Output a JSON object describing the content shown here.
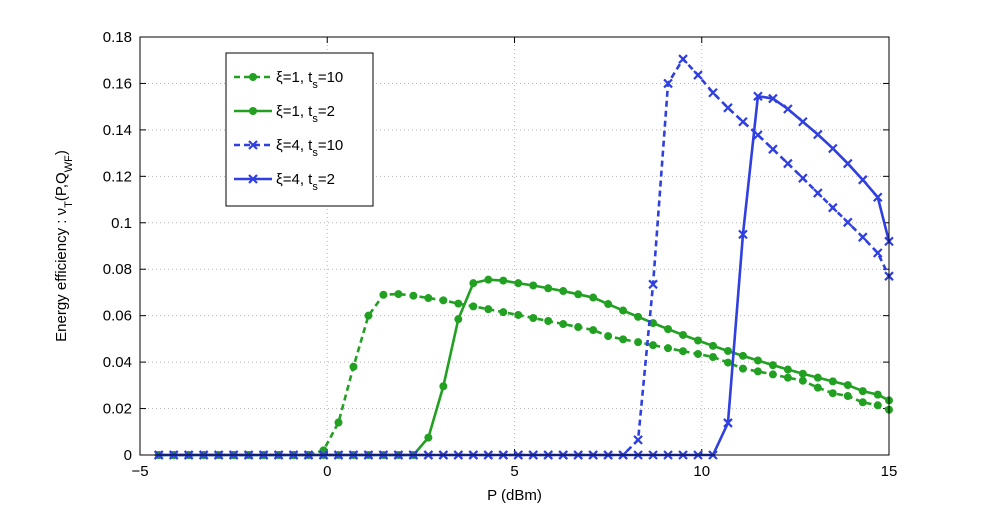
{
  "chart_data": {
    "type": "line",
    "xlabel": "P (dBm)",
    "ylabel": "Energy efficiency : ν_T(P,Q_WF)",
    "ylabel_parts": {
      "pre": "Energy efficiency : ν",
      "sub1": "T",
      "mid": "(P,Q",
      "sub2": "WF",
      "post": ")"
    },
    "xlim": [
      -5,
      15
    ],
    "ylim": [
      0,
      0.18
    ],
    "xticks": [
      -5,
      0,
      5,
      10,
      15
    ],
    "xtick_labels": [
      "−5",
      "0",
      "5",
      "10",
      "15"
    ],
    "yticks": [
      0,
      0.02,
      0.04,
      0.06,
      0.08,
      0.1,
      0.12,
      0.14,
      0.16,
      0.18
    ],
    "ytick_labels": [
      "0",
      "0.02",
      "0.04",
      "0.06",
      "0.08",
      "0.1",
      "0.12",
      "0.14",
      "0.16",
      "0.18"
    ],
    "grid": true,
    "legend_position": "top-left",
    "series": [
      {
        "name": "ξ=1, t_s=10",
        "label_parts": {
          "main": "ξ=1, t",
          "sub": "s",
          "tail": "=10"
        },
        "color": "#22a022",
        "linestyle": "dashed",
        "marker": "dot",
        "x": [
          -4.5,
          -4.1,
          -3.7,
          -3.3,
          -2.9,
          -2.5,
          -2.1,
          -1.7,
          -1.3,
          -0.9,
          -0.5,
          -0.1,
          0.3,
          0.7,
          1.1,
          1.5,
          1.9,
          2.3,
          2.7,
          3.1,
          3.5,
          3.9,
          4.3,
          4.7,
          5.1,
          5.5,
          5.9,
          6.3,
          6.7,
          7.1,
          7.5,
          7.9,
          8.3,
          8.7,
          9.1,
          9.5,
          9.9,
          10.3,
          10.7,
          11.1,
          11.5,
          11.9,
          12.3,
          12.7,
          13.1,
          13.5,
          13.9,
          14.3,
          14.7,
          15.0
        ],
        "y": [
          0,
          0,
          0,
          0,
          0,
          0,
          0,
          0,
          0,
          0,
          0,
          0.002,
          0.014,
          0.038,
          0.06,
          0.069,
          0.0693,
          0.0686,
          0.0676,
          0.0666,
          0.0652,
          0.064,
          0.0628,
          0.0615,
          0.0603,
          0.059,
          0.0577,
          0.0564,
          0.0551,
          0.0538,
          0.0512,
          0.0498,
          0.0486,
          0.0473,
          0.046,
          0.0447,
          0.0435,
          0.0422,
          0.0398,
          0.0372,
          0.036,
          0.0347,
          0.0333,
          0.032,
          0.029,
          0.0266,
          0.0254,
          0.0227,
          0.0214,
          0.0195
        ]
      },
      {
        "name": "ξ=1, t_s=2",
        "label_parts": {
          "main": "ξ=1, t",
          "sub": "s",
          "tail": "=2"
        },
        "color": "#22a022",
        "linestyle": "solid",
        "marker": "dot",
        "x": [
          -4.5,
          -4.1,
          -3.7,
          -3.3,
          -2.9,
          -2.5,
          -2.1,
          -1.7,
          -1.3,
          -0.9,
          -0.5,
          -0.1,
          0.3,
          0.7,
          1.1,
          1.5,
          1.9,
          2.3,
          2.7,
          3.1,
          3.5,
          3.9,
          4.3,
          4.7,
          5.1,
          5.5,
          5.9,
          6.3,
          6.7,
          7.1,
          7.5,
          7.9,
          8.3,
          8.7,
          9.1,
          9.5,
          9.9,
          10.3,
          10.7,
          11.1,
          11.5,
          11.9,
          12.3,
          12.7,
          13.1,
          13.5,
          13.9,
          14.3,
          14.7,
          15.0
        ],
        "y": [
          0,
          0,
          0,
          0,
          0,
          0,
          0,
          0,
          0,
          0,
          0,
          0,
          0,
          0,
          0,
          0,
          0,
          0,
          0.0075,
          0.0296,
          0.0585,
          0.074,
          0.0755,
          0.0751,
          0.074,
          0.073,
          0.0718,
          0.0706,
          0.0692,
          0.0678,
          0.065,
          0.0622,
          0.0595,
          0.0568,
          0.0542,
          0.0517,
          0.0493,
          0.047,
          0.0448,
          0.0427,
          0.0407,
          0.0387,
          0.0368,
          0.035,
          0.0333,
          0.0317,
          0.0301,
          0.0275,
          0.026,
          0.0235
        ]
      },
      {
        "name": "ξ=4, t_s=10",
        "label_parts": {
          "main": "ξ=4, t",
          "sub": "s",
          "tail": "=10"
        },
        "color": "#2f3fe0",
        "linestyle": "dashed",
        "marker": "x",
        "x": [
          -4.5,
          -4.1,
          -3.7,
          -3.3,
          -2.9,
          -2.5,
          -2.1,
          -1.7,
          -1.3,
          -0.9,
          -0.5,
          -0.1,
          0.3,
          0.7,
          1.1,
          1.5,
          1.9,
          2.3,
          2.7,
          3.1,
          3.5,
          3.9,
          4.3,
          4.7,
          5.1,
          5.5,
          5.9,
          6.3,
          6.7,
          7.1,
          7.5,
          7.9,
          8.3,
          8.7,
          9.1,
          9.5,
          9.9,
          10.3,
          10.7,
          11.1,
          11.5,
          11.9,
          12.3,
          12.7,
          13.1,
          13.5,
          13.9,
          14.3,
          14.7,
          15.0
        ],
        "y": [
          0,
          0,
          0,
          0,
          0,
          0,
          0,
          0,
          0,
          0,
          0,
          0,
          0,
          0,
          0,
          0,
          0,
          0,
          0,
          0,
          0,
          0,
          0,
          0,
          0,
          0,
          0,
          0,
          0,
          0,
          0,
          0,
          0.0065,
          0.0735,
          0.16,
          0.1705,
          0.1636,
          0.156,
          0.1495,
          0.1435,
          0.1378,
          0.1317,
          0.1255,
          0.1192,
          0.1128,
          0.1065,
          0.1002,
          0.0938,
          0.087,
          0.077
        ]
      },
      {
        "name": "ξ=4, t_s=2",
        "label_parts": {
          "main": "ξ=4, t",
          "sub": "s",
          "tail": "=2"
        },
        "color": "#2f3fe0",
        "linestyle": "solid",
        "marker": "x",
        "x": [
          -4.5,
          -4.1,
          -3.7,
          -3.3,
          -2.9,
          -2.5,
          -2.1,
          -1.7,
          -1.3,
          -0.9,
          -0.5,
          -0.1,
          0.3,
          0.7,
          1.1,
          1.5,
          1.9,
          2.3,
          2.7,
          3.1,
          3.5,
          3.9,
          4.3,
          4.7,
          5.1,
          5.5,
          5.9,
          6.3,
          6.7,
          7.1,
          7.5,
          7.9,
          8.3,
          8.7,
          9.1,
          9.5,
          9.9,
          10.3,
          10.7,
          11.1,
          11.5,
          11.9,
          12.3,
          12.7,
          13.1,
          13.5,
          13.9,
          14.3,
          14.7,
          15.0
        ],
        "y": [
          0,
          0,
          0,
          0,
          0,
          0,
          0,
          0,
          0,
          0,
          0,
          0,
          0,
          0,
          0,
          0,
          0,
          0,
          0,
          0,
          0,
          0,
          0,
          0,
          0,
          0,
          0,
          0,
          0,
          0,
          0,
          0,
          0,
          0,
          0,
          0,
          0,
          0,
          0.0138,
          0.095,
          0.1545,
          0.1535,
          0.149,
          0.1435,
          0.138,
          0.132,
          0.1255,
          0.1185,
          0.111,
          0.092
        ]
      }
    ]
  }
}
